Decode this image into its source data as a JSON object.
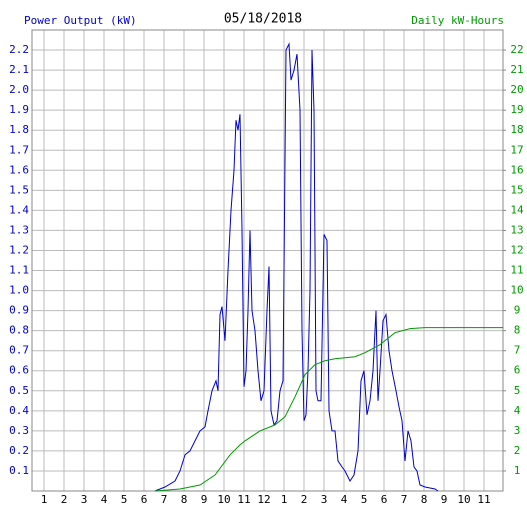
{
  "chart_data": {
    "type": "line",
    "title": "05/18/2018",
    "y_label": "Power Output (kW)",
    "y2_label": "Daily kW-Hours",
    "grid": true,
    "xlim": [
      0.4,
      23.95
    ],
    "xticks": [
      1,
      2,
      3,
      4,
      5,
      6,
      7,
      8,
      9,
      10,
      11,
      12,
      {
        "value": 13,
        "label": "1"
      },
      {
        "value": 14,
        "label": "2"
      },
      {
        "value": 15,
        "label": "3"
      },
      {
        "value": 16,
        "label": "4"
      },
      {
        "value": 17,
        "label": "5"
      },
      {
        "value": 18,
        "label": "6"
      },
      {
        "value": 19,
        "label": "7"
      },
      {
        "value": 20,
        "label": "8"
      },
      {
        "value": 21,
        "label": "9"
      },
      {
        "value": 22,
        "label": "10"
      },
      {
        "value": 23,
        "label": "11"
      }
    ],
    "ylim": [
      0,
      2.3
    ],
    "yticks": [
      0.1,
      0.2,
      0.3,
      0.4,
      0.5,
      0.6,
      0.7,
      0.8,
      0.9,
      {
        "value": 1,
        "label": "1.0"
      },
      1.1,
      1.2,
      1.3,
      1.4,
      1.5,
      1.6,
      1.7,
      1.8,
      1.9,
      {
        "value": 2,
        "label": "2.0"
      },
      2.1,
      2.2
    ],
    "y2lim": [
      0,
      23
    ],
    "y2ticks": [
      1,
      2,
      3,
      4,
      5,
      6,
      7,
      8,
      9,
      10,
      11,
      12,
      13,
      14,
      15,
      16,
      17,
      18,
      19,
      20,
      21,
      22
    ],
    "series": [
      {
        "color": "#0000cc",
        "axis": "y",
        "x": [
          6.55,
          7.05,
          7.55,
          7.8,
          8.05,
          8.3,
          8.55,
          8.8,
          9.05,
          9.2,
          9.4,
          9.6,
          9.7,
          9.8,
          9.9,
          10.05,
          10.2,
          10.35,
          10.5,
          10.6,
          10.7,
          10.8,
          10.9,
          11,
          11.1,
          11.2,
          11.3,
          11.4,
          11.55,
          11.7,
          11.85,
          12,
          12.15,
          12.25,
          12.35,
          12.5,
          12.65,
          12.8,
          12.95,
          13.1,
          13.25,
          13.35,
          13.5,
          13.65,
          13.8,
          13.9,
          14,
          14.1,
          14.2,
          14.3,
          14.4,
          14.5,
          14.6,
          14.7,
          14.85,
          15,
          15.15,
          15.25,
          15.4,
          15.55,
          15.7,
          15.9,
          16.05,
          16.3,
          16.5,
          16.7,
          16.85,
          17,
          17.15,
          17.3,
          17.45,
          17.6,
          17.7,
          17.8,
          17.95,
          18.1,
          18.25,
          18.4,
          18.6,
          18.75,
          18.9,
          19.05,
          19.2,
          19.35,
          19.5,
          19.65,
          19.8,
          20.05,
          20.55,
          20.7
        ],
        "values": [
          0,
          0.02,
          0.05,
          0.1,
          0.18,
          0.2,
          0.25,
          0.3,
          0.32,
          0.4,
          0.5,
          0.55,
          0.5,
          0.88,
          0.92,
          0.75,
          1.1,
          1.4,
          1.6,
          1.85,
          1.8,
          1.88,
          1.3,
          0.52,
          0.6,
          0.9,
          1.3,
          0.9,
          0.8,
          0.6,
          0.45,
          0.5,
          0.9,
          1.12,
          0.4,
          0.33,
          0.35,
          0.5,
          0.55,
          2.2,
          2.23,
          2.05,
          2.1,
          2.18,
          1.9,
          0.8,
          0.35,
          0.38,
          0.6,
          1.0,
          2.2,
          1.9,
          0.5,
          0.45,
          0.45,
          1.28,
          1.25,
          0.4,
          0.3,
          0.3,
          0.15,
          0.12,
          0.1,
          0.05,
          0.08,
          0.2,
          0.55,
          0.6,
          0.38,
          0.45,
          0.6,
          0.9,
          0.45,
          0.6,
          0.85,
          0.88,
          0.7,
          0.6,
          0.5,
          0.42,
          0.35,
          0.15,
          0.3,
          0.25,
          0.12,
          0.1,
          0.03,
          0.02,
          0.01,
          0
        ]
      },
      {
        "color": "#009900",
        "axis": "y2",
        "x": [
          6.55,
          7.8,
          8.8,
          9.55,
          10.3,
          10.8,
          11.05,
          11.8,
          12.55,
          13.05,
          13.55,
          14.05,
          14.55,
          15.05,
          15.55,
          16.55,
          17.05,
          17.8,
          18.55,
          19.3,
          20.05,
          20.8,
          23.95
        ],
        "values": [
          0,
          0.1,
          0.3,
          0.8,
          1.8,
          2.3,
          2.5,
          3.0,
          3.3,
          3.7,
          4.7,
          5.8,
          6.3,
          6.5,
          6.6,
          6.7,
          6.9,
          7.3,
          7.9,
          8.1,
          8.15,
          8.15,
          8.15
        ]
      }
    ]
  }
}
